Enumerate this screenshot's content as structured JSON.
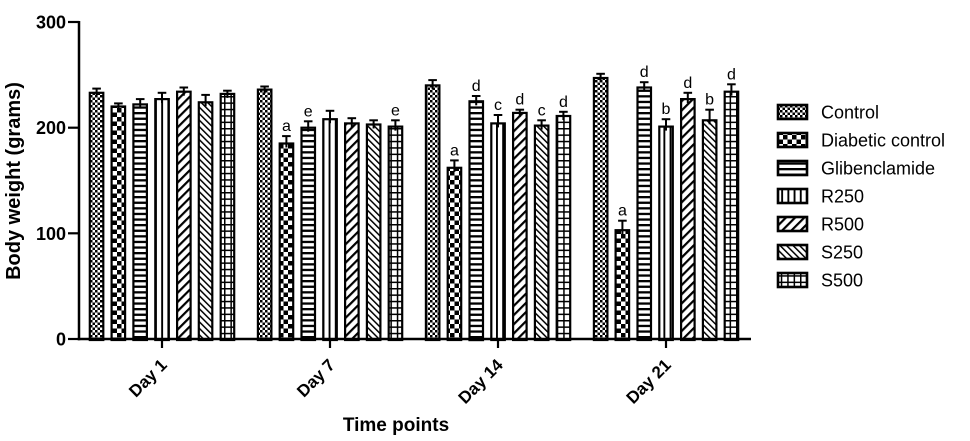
{
  "figure": {
    "background": "#ffffff",
    "ink": "#000000"
  },
  "chart_data": {
    "type": "bar",
    "title": "",
    "xlabel": "Time points",
    "ylabel": "Body weight (grams)",
    "grid": false,
    "legend_position": "right",
    "categories": [
      "Day 1",
      "Day 7",
      "Day 14",
      "Day 21"
    ],
    "y_axis": {
      "min": 0,
      "max": 300,
      "ticks": [
        0,
        100,
        200,
        300
      ]
    },
    "series": [
      {
        "name": "Control",
        "pattern": "checker-fine",
        "values": [
          233,
          236,
          240,
          247
        ],
        "errors": [
          4,
          3,
          5,
          4
        ],
        "annotations": [
          "",
          "",
          "",
          ""
        ]
      },
      {
        "name": "Diabetic control",
        "pattern": "checker-coarse",
        "values": [
          220,
          185,
          162,
          103
        ],
        "errors": [
          3,
          7,
          7,
          9
        ],
        "annotations": [
          "",
          "a",
          "a",
          "a"
        ]
      },
      {
        "name": "Glibenclamide",
        "pattern": "horizontal-lines",
        "values": [
          222,
          200,
          225,
          238
        ],
        "errors": [
          5,
          6,
          5,
          5
        ],
        "annotations": [
          "",
          "e",
          "d",
          "d"
        ]
      },
      {
        "name": "R250",
        "pattern": "vertical-lines",
        "values": [
          227,
          208,
          204,
          201
        ],
        "errors": [
          6,
          8,
          8,
          7
        ],
        "annotations": [
          "",
          "",
          "c",
          "b"
        ]
      },
      {
        "name": "R500",
        "pattern": "diagonal-up",
        "values": [
          234,
          204,
          214,
          227
        ],
        "errors": [
          4,
          5,
          3,
          6
        ],
        "annotations": [
          "",
          "",
          "d",
          "d"
        ]
      },
      {
        "name": "S250",
        "pattern": "diagonal-down",
        "values": [
          224,
          203,
          202,
          207
        ],
        "errors": [
          7,
          4,
          5,
          10
        ],
        "annotations": [
          "",
          "",
          "c",
          "b"
        ]
      },
      {
        "name": "S500",
        "pattern": "grid",
        "values": [
          232,
          201,
          211,
          234
        ],
        "errors": [
          3,
          6,
          4,
          7
        ],
        "annotations": [
          "",
          "e",
          "d",
          "d"
        ]
      }
    ]
  }
}
